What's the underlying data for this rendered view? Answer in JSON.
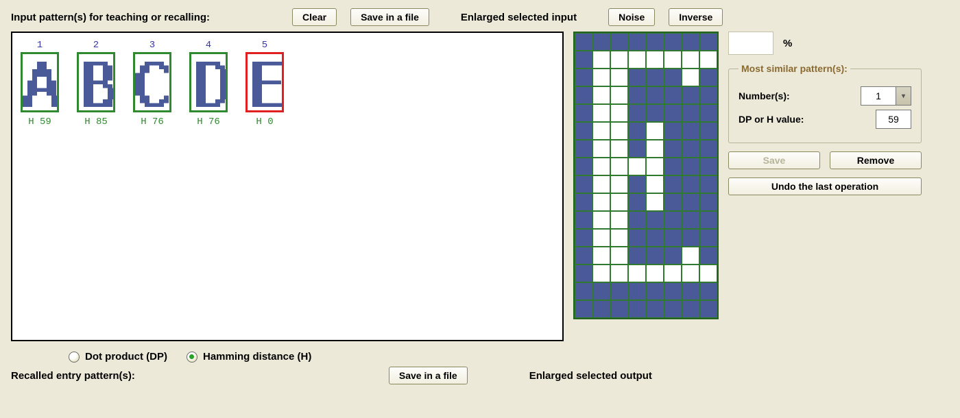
{
  "labels": {
    "input_patterns": "Input pattern(s) for teaching or recalling:",
    "enlarged_input": "Enlarged selected input",
    "enlarged_output": "Enlarged selected output",
    "recalled_entry": "Recalled entry pattern(s):",
    "percent_sign": "%"
  },
  "buttons": {
    "clear": "Clear",
    "save_in_file": "Save in a file",
    "save_in_file_2": "Save in a file",
    "noise": "Noise",
    "inverse": "Inverse",
    "save": "Save",
    "remove": "Remove",
    "undo": "Undo the last operation"
  },
  "radios": {
    "dp_label": "Dot product (DP)",
    "h_label": "Hamming distance (H)",
    "selected": "h"
  },
  "similar_group": {
    "legend": "Most similar pattern(s):",
    "numbers_label": "Number(s):",
    "numbers_value": "1",
    "dp_h_label": "DP or H value:",
    "dp_h_value": "59"
  },
  "patterns": [
    {
      "num": "1",
      "h": "H 59",
      "selected": false
    },
    {
      "num": "2",
      "h": "H 85",
      "selected": false
    },
    {
      "num": "3",
      "h": "H 76",
      "selected": false
    },
    {
      "num": "4",
      "h": "H 76",
      "selected": false
    },
    {
      "num": "5",
      "h": "H 0",
      "selected": true
    }
  ],
  "thumbs": {
    "cols": 8,
    "rows": 16,
    "color_on": "#4a5a98",
    "color_off": "#ffffff",
    "letters": [
      [
        "........",
        "........",
        "...##...",
        "...##...",
        "..####..",
        "..####..",
        "..#..#..",
        ".##..##.",
        ".##..##.",
        ".######.",
        ".##..##.",
        "##....##",
        "##....##",
        "##....##",
        "........",
        "........"
      ],
      [
        "........",
        "........",
        ".#####..",
        ".##..##.",
        ".##..##.",
        ".##..##.",
        ".##..##.",
        ".#####..",
        ".##..##.",
        ".##...##",
        ".##...##",
        ".##...##",
        ".##..##.",
        ".######.",
        "........",
        "........"
      ],
      [
        "........",
        "........",
        "..####..",
        ".##..##.",
        ".##...#.",
        "##......",
        "##......",
        "##......",
        "##......",
        "##......",
        "##......",
        ".##...#.",
        ".##..##.",
        "..####..",
        "........",
        "........"
      ],
      [
        "........",
        "........",
        ".#####..",
        ".##..##.",
        ".##...##",
        ".##...##",
        ".##...##",
        ".##...##",
        ".##...##",
        ".##...##",
        ".##...##",
        ".##...##",
        ".##..##.",
        ".#####..",
        "........",
        "........"
      ],
      [
        "........",
        "........",
        ".#######",
        ".##.....",
        ".##.....",
        ".##.....",
        ".##.....",
        ".######.",
        ".##.....",
        ".##.....",
        ".##.....",
        ".##.....",
        ".##.....",
        ".#######",
        "........",
        "........"
      ]
    ]
  },
  "enlarged_grid": {
    "cols": 8,
    "rows": 16,
    "cells": [
      "........",
      ".#######",
      ".##...#.",
      ".##.....",
      ".##.....",
      ".##.#...",
      ".##.#...",
      ".####...",
      ".##.#...",
      ".##.#...",
      ".##.....",
      ".##.....",
      ".##...#.",
      ".#######",
      "........",
      "........"
    ]
  },
  "colors": {
    "grid_on": "#ffffff",
    "grid_off": "#4a5a98",
    "grid_border": "#2f7a2f",
    "thumb_border": "#2f8a2f",
    "thumb_border_selected": "#e02020"
  }
}
